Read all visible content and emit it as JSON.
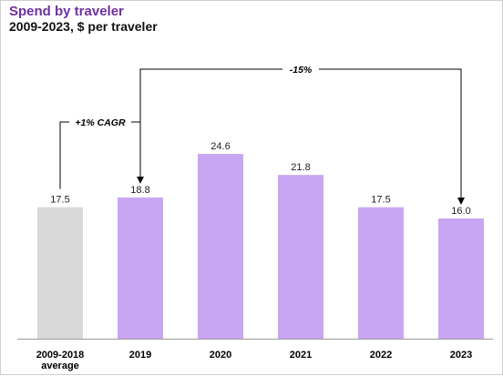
{
  "chart_data": {
    "type": "bar",
    "title": "Spend by traveler",
    "subtitle": "2009-2023, $ per traveler",
    "categories": [
      [
        "2009-2018",
        "average"
      ],
      [
        "2019"
      ],
      [
        "2020"
      ],
      [
        "2021"
      ],
      [
        "2022"
      ],
      [
        "2023"
      ]
    ],
    "values": [
      17.5,
      18.8,
      24.6,
      21.8,
      17.5,
      16.0
    ],
    "value_labels": [
      "17.5",
      "18.8",
      "24.6",
      "21.8",
      "17.5",
      "16.0"
    ],
    "ylim": [
      0,
      30
    ],
    "grid": false,
    "colors": {
      "average": "#d9d9d9",
      "years": "#c9a6f2",
      "title": "#7030a0"
    },
    "annotations": [
      {
        "text": "+1% CAGR",
        "from": 0,
        "to": 1
      },
      {
        "text": "-15%",
        "from": 1,
        "to": 5
      }
    ]
  }
}
